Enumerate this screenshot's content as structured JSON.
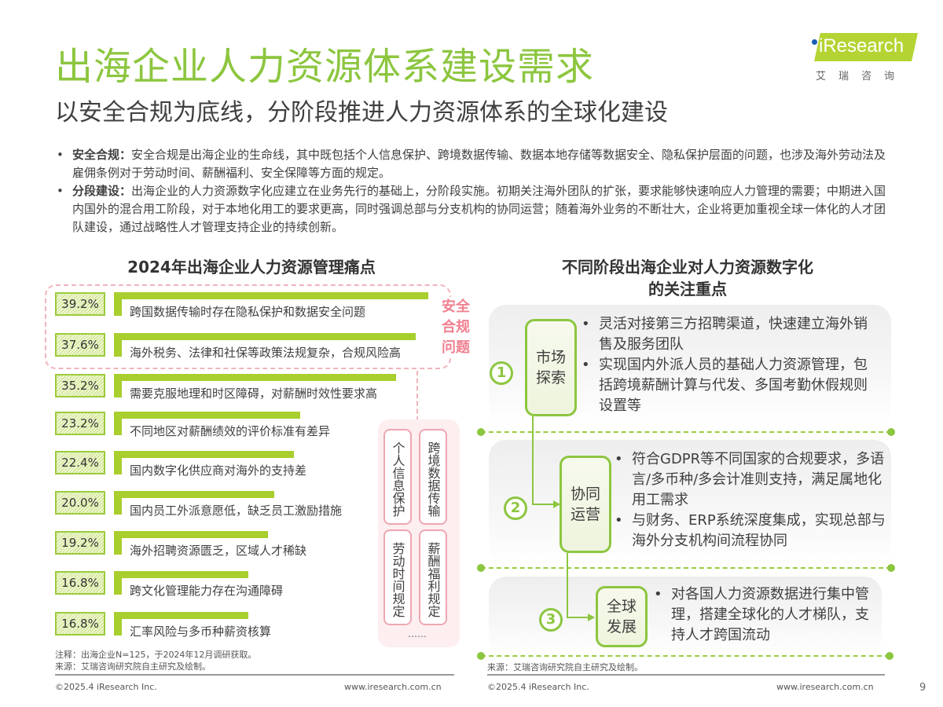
{
  "header": {
    "title": "出海企业人力资源体系建设需求",
    "subtitle": "以安全合规为底线，分阶段推进人力资源体系的全球化建设",
    "logo_text": "Research",
    "logo_cn": "艾瑞咨询",
    "brand_color": "#8cc63f"
  },
  "bullets": [
    {
      "lead": "安全合规：",
      "text": "安全合规是出海企业的生命线，其中既包括个人信息保护、跨境数据传输、数据本地存储等数据安全、隐私保护层面的问题，也涉及海外劳动法及雇佣条例对于劳动时间、薪酬福利、安全保障等方面的规定。"
    },
    {
      "lead": "分段建设：",
      "text": "出海企业的人力资源数字化应建立在业务先行的基础上，分阶段实施。初期关注海外团队的扩张，要求能够快速响应人力管理的需要；中期进入国内国外的混合用工阶段，对于本地化用工的要求更高，同时强调总部与分支机构的协同运营；随着海外业务的不断壮大，企业将更加重视全球一体化的人才团队建设，通过战略性人才管理支持企业的持续创新。"
    }
  ],
  "left_chart": {
    "title": "2024年出海企业人力资源管理痛点",
    "group_label": "安全合规问题",
    "group_label_lines": [
      "安全",
      "合规",
      "问题"
    ],
    "tags": [
      "个人信息保护",
      "跨境数据传输",
      "劳动时间规定",
      "薪酬福利规定"
    ],
    "tags_more": "……",
    "note": "注释：出海企业N=125，于2024年12月调研获取。",
    "source": "来源：艾瑞咨询研究院自主研究及绘制。"
  },
  "chart_data": {
    "type": "bar",
    "orientation": "horizontal",
    "title": "2024年出海企业人力资源管理痛点",
    "categories": [
      "跨国数据传输时存在隐私保护和数据安全问题",
      "海外税务、法律和社保等政策法规复杂，合规风险高",
      "需要克服地理和时区障碍，对薪酬时效性要求高",
      "不同地区对薪酬绩效的评价标准有差异",
      "国内数字化供应商对海外的支持差",
      "国内员工外派意愿低，缺乏员工激励措施",
      "海外招聘资源匮乏，区域人才稀缺",
      "跨文化管理能力存在沟通障碍",
      "汇率风险与多币种薪资核算"
    ],
    "values": [
      39.2,
      37.6,
      35.2,
      23.2,
      22.4,
      20.0,
      19.2,
      16.8,
      16.8
    ],
    "labels": [
      "39.2%",
      "37.6%",
      "35.2%",
      "23.2%",
      "22.4%",
      "20.0%",
      "19.2%",
      "16.8%",
      "16.8%"
    ],
    "unit": "%",
    "xlabel": "",
    "ylabel": "",
    "grid": false,
    "bar_color": "#a8cf2d",
    "annotations": [
      "安全合规问题 (前两项)"
    ],
    "note": "出海企业N=125，于2024年12月调研获取。"
  },
  "right_panel": {
    "title_line1": "不同阶段出海企业对人力资源数字化",
    "title_line2": "的关注重点",
    "stages": [
      {
        "num": "1",
        "name_line1": "市场",
        "name_line2": "探索",
        "items": [
          "灵活对接第三方招聘渠道，快速建立海外销售及服务团队",
          "实现国内外派人员的基础人力资源管理，包括跨境薪酬计算与代发、多国考勤休假规则设置等"
        ]
      },
      {
        "num": "2",
        "name_line1": "协同",
        "name_line2": "运营",
        "items": [
          "符合GDPR等不同国家的合规要求，多语言/多币种/多会计准则支持，满足属地化用工需求",
          "与财务、ERP系统深度集成，实现总部与海外分支机构间流程协同"
        ]
      },
      {
        "num": "3",
        "name_line1": "全球",
        "name_line2": "发展",
        "items": [
          "对各国人力资源数据进行集中管理，搭建全球化的人才梯队，支持人才跨国流动"
        ]
      }
    ],
    "source": "来源：艾瑞咨询研究院自主研究及绘制。"
  },
  "footer": {
    "copyright": "©2025.4 iResearch Inc.",
    "url": "www.iresearch.com.cn",
    "page": "9"
  }
}
